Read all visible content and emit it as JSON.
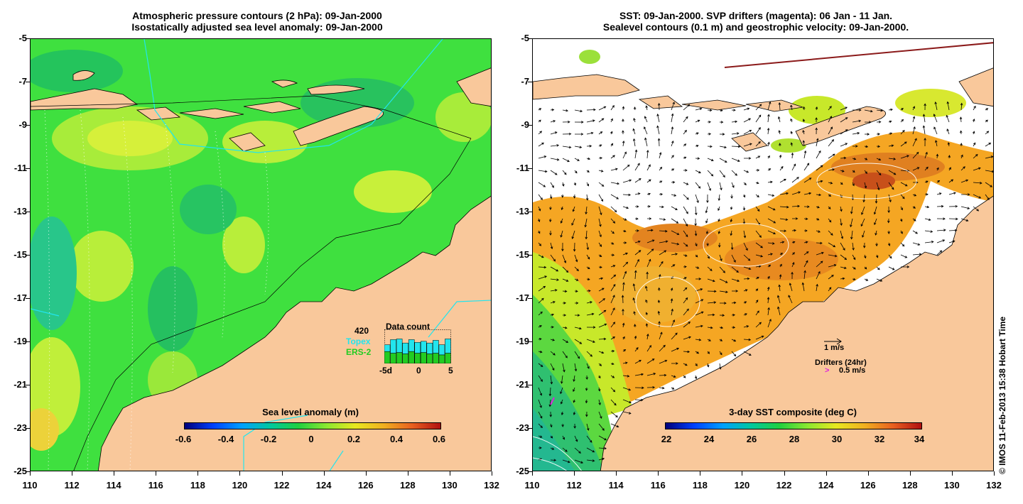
{
  "left_panel": {
    "title_line1": "Atmospheric pressure contours (2 hPa): 09-Jan-2000",
    "title_line2": "Isostatically adjusted sea level anomaly: 09-Jan-2000",
    "colorbar": {
      "title": "Sea level anomaly (m)",
      "ticks": [
        "-0.6",
        "-0.4",
        "-0.2",
        "0",
        "0.2",
        "0.4",
        "0.6"
      ]
    },
    "data_count": {
      "value": "420",
      "title": "Data count",
      "topex_label": "Topex",
      "ers2_label": "ERS-2",
      "axis_labels": [
        "-5d",
        "0",
        "5"
      ],
      "topex_fraction": [
        0.55,
        0.7,
        0.72,
        0.6,
        0.7,
        0.62,
        0.65,
        0.6,
        0.68,
        0.55,
        0.72
      ],
      "ers2_fraction": [
        0.35,
        0.3,
        0.32,
        0.28,
        0.35,
        0.3,
        0.32,
        0.28,
        0.3,
        0.25,
        0.3
      ]
    }
  },
  "right_panel": {
    "title_line1": "SST: 09-Jan-2000. SVP drifters (magenta): 06 Jan - 11 Jan.",
    "title_line2": "Sealevel contours (0.1 m) and geostrophic velocity: 09-Jan-2000.",
    "colorbar": {
      "title": "3-day SST composite (deg C)",
      "ticks": [
        "22",
        "24",
        "26",
        "28",
        "30",
        "32",
        "34"
      ]
    },
    "legend": {
      "velocity_label": "1 m/s",
      "drifters_title": "Drifters (24hr)",
      "drifter_speed": "0.5 m/s"
    }
  },
  "axes": {
    "y_ticks": [
      "-5",
      "-7",
      "-9",
      "-11",
      "-13",
      "-15",
      "-17",
      "-19",
      "-21",
      "-23",
      "-25"
    ],
    "x_ticks": [
      "110",
      "112",
      "114",
      "116",
      "118",
      "120",
      "122",
      "124",
      "126",
      "128",
      "130",
      "132"
    ]
  },
  "credit": "© IMOS 11-Feb-2013 15:38 Hobart Time",
  "colors": {
    "land": "#f9c89b",
    "sla_base": "#3fe03f",
    "sla_high": "#c8f03a",
    "sla_low": "#20c060",
    "sst_warm": "#f5a623",
    "sst_hot": "#d2601a",
    "sst_cool": "#2fc070",
    "topex": "#22e5ee",
    "ers2": "#22cc22",
    "drifter": "#dd22dd"
  }
}
